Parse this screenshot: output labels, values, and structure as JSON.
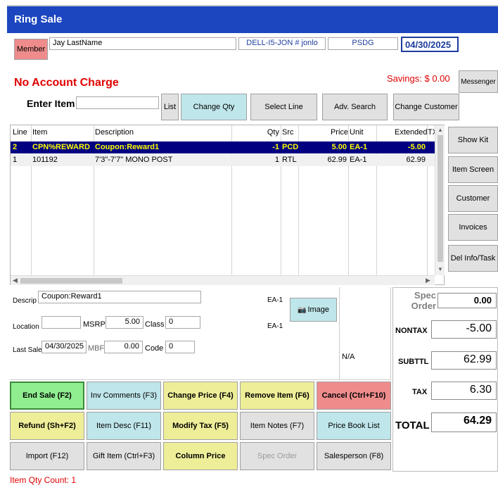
{
  "window": {
    "title": "Ring Sale"
  },
  "header": {
    "member_label": "Member",
    "customer_name": "Jay LastName",
    "station": "DELL-I5-JON # jonlo",
    "user": "PSDG",
    "date": "04/30/2025"
  },
  "no_account_charge": "No Account Charge",
  "savings": "Savings: $ 0.00",
  "messenger_label": "Messenger",
  "enter_item": {
    "label": "Enter Item",
    "value": ""
  },
  "toolbar": {
    "list": "List",
    "change_qty": "Change Qty",
    "select_line": "Select Line",
    "adv_search": "Adv. Search",
    "change_customer": "Change Customer"
  },
  "grid": {
    "columns": [
      "Line",
      "Item",
      "Description",
      "Qty",
      "Src",
      "Price",
      "Unit",
      "Extended",
      "TX"
    ],
    "rows": [
      {
        "line": "2",
        "item": "CPN%REWARD",
        "description": "Coupon:Reward1",
        "qty": "-1",
        "src": "PCD",
        "price": "5.00",
        "unit": "EA-1",
        "extended": "-5.00",
        "tx": ""
      },
      {
        "line": "1",
        "item": "101192",
        "description": "7'3\"-7'7\" MONO POST",
        "qty": "1",
        "src": "RTL",
        "price": "62.99",
        "unit": "EA-1",
        "extended": "62.99",
        "tx": ""
      }
    ]
  },
  "side_buttons": {
    "show_kit": "Show Kit",
    "item_screen": "Item Screen",
    "customer": "Customer",
    "invoices": "Invoices",
    "del_info": "Del Info/Task"
  },
  "detail": {
    "descrip_label": "Descrip",
    "descrip_value": "Coupon:Reward1",
    "unit1": "EA-1",
    "unit2": "EA-1",
    "image_label": "Image",
    "location_label": "Location",
    "location_value": "",
    "msrp_label": "MSRP",
    "msrp_value": "5.00",
    "class_label": "Class",
    "class_value": "0",
    "last_sale_label": "Last Sale",
    "last_sale_value": "04/30/2025",
    "mbf_label": "MBF",
    "mbf_value": "0.00",
    "code_label": "Code",
    "code_value": "0",
    "na": "N/A"
  },
  "totals": {
    "spec_order_label": "Spec Order",
    "spec_order_value": "0.00",
    "nontax_label": "NONTAX",
    "nontax_value": "-5.00",
    "subttl_label": "SUBTTL",
    "subttl_value": "62.99",
    "tax_label": "TAX",
    "tax_value": "6.30",
    "total_label": "TOTAL",
    "total_value": "64.29"
  },
  "actions": {
    "end_sale": "End Sale (F2)",
    "inv_comments": "Inv Comments (F3)",
    "change_price": "Change Price (F4)",
    "remove_item": "Remove Item (F6)",
    "cancel": "Cancel (Ctrl+F10)",
    "refund": "Refund (Sh+F2)",
    "item_desc": "Item Desc (F11)",
    "modify_tax": "Modify Tax (F5)",
    "item_notes": "Item Notes (F7)",
    "price_book": "Price Book List",
    "import": "Import (F12)",
    "gift_item": "Gift Item (Ctrl+F3)",
    "column_price": "Column Price",
    "spec_order": "Spec Order",
    "salesperson": "Salesperson (F8)"
  },
  "status": {
    "item_qty_count": "Item Qty Count: 1"
  },
  "colors": {
    "title_bar": "#1c46c0",
    "selected_row": "#000080",
    "selected_text": "#ffff00",
    "green": "#90ee90",
    "cyan": "#bfe6ea",
    "yellow": "#eeee99",
    "red": "#ee8c8c",
    "member": "#ee8c8c"
  }
}
